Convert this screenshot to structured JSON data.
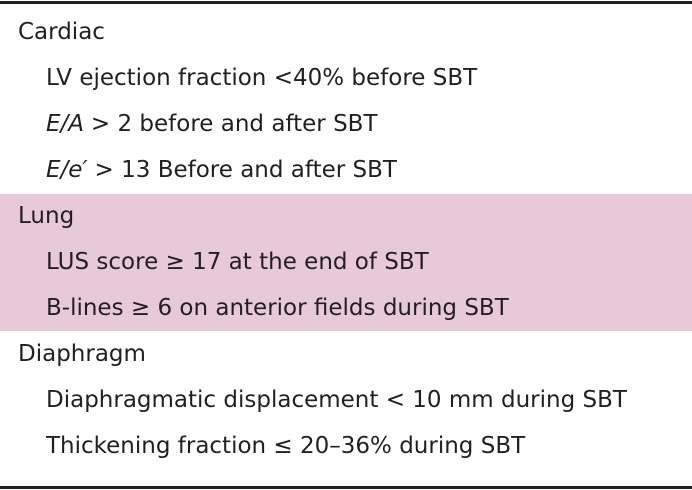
{
  "table": {
    "sections": [
      {
        "title": "Cardiac",
        "highlight": false,
        "items": [
          {
            "text": "LV ejection fraction <40% before SBT"
          },
          {
            "emphasis": "E/A",
            "text": "> 2 before and after SBT"
          },
          {
            "emphasis": "E/e′",
            "text": "> 13 Before and after SBT"
          }
        ]
      },
      {
        "title": "Lung",
        "highlight": true,
        "items": [
          {
            "text": "LUS score ≥ 17 at the end of SBT"
          },
          {
            "text": "B-lines ≥ 6 on anterior fields during SBT"
          }
        ]
      },
      {
        "title": "Diaphragm",
        "highlight": false,
        "items": [
          {
            "text": "Diaphragmatic displacement < 10 mm during SBT"
          },
          {
            "text": "Thickening fraction ≤ 20–36% during SBT"
          }
        ]
      }
    ]
  }
}
